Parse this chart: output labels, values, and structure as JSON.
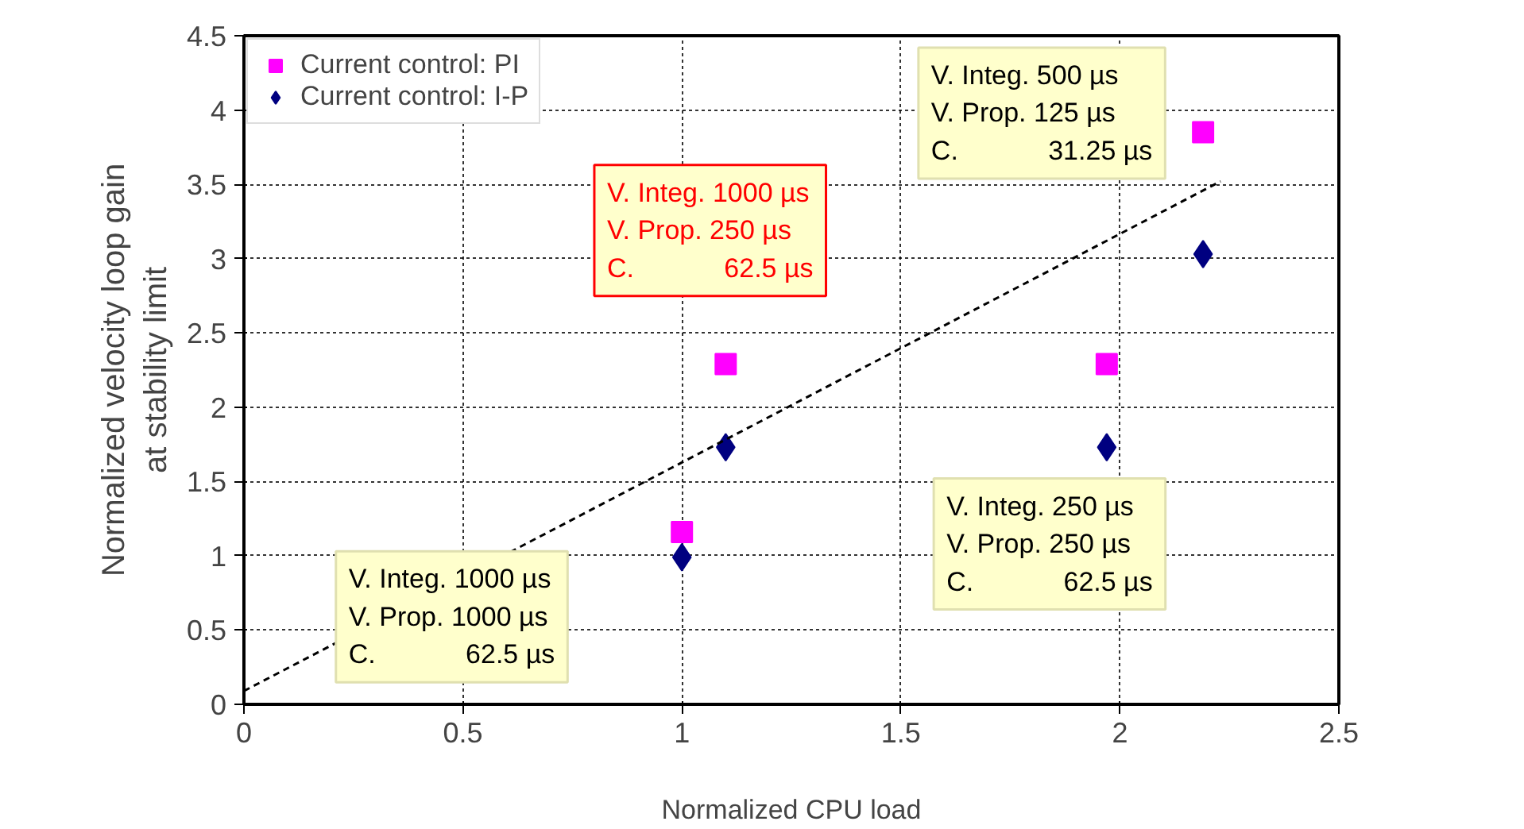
{
  "chart_data": {
    "type": "scatter",
    "xlabel": "Normalized CPU load",
    "ylabel": "Normalized velocity loop gain\nat stability limit",
    "xlim": [
      0,
      2.5
    ],
    "xticks": [
      0,
      0.5,
      1,
      1.5,
      2,
      2.5
    ],
    "ylim": [
      0,
      4.5
    ],
    "yticks": [
      0,
      0.5,
      1,
      1.5,
      2,
      2.5,
      3,
      3.5,
      4,
      4.5
    ],
    "grid": true,
    "legend": "top left",
    "series": [
      {
        "name": "Current control: PI",
        "color": "#ff00ff",
        "marker": "square",
        "x": [
          1.0,
          1.1,
          1.97,
          2.19
        ],
        "values": [
          1.16,
          2.29,
          2.29,
          3.85
        ]
      },
      {
        "name": "Current control: I-P",
        "color": "#000080",
        "marker": "diamond",
        "x": [
          1.0,
          1.1,
          1.97,
          2.19
        ],
        "values": [
          0.99,
          1.73,
          1.73,
          3.03
        ]
      },
      {
        "type": "line",
        "color": "#000000",
        "line_style": "dashed",
        "x": [
          0,
          2.23
        ],
        "values": [
          0.09,
          3.52
        ]
      }
    ],
    "annotations": [
      "V. Integ. 1000 µs\nV. Prop. 1000 µs\nC.            62.5 µs",
      "V. Integ. 1000 µs\nV. Prop. 250 µs\nC.            62.5 µs",
      "V. Integ. 250 µs\nV. Prop. 250 µs\nC.            62.5 µs",
      "V. Integ. 500 µs\nV. Prop. 125 µs\nC.            31.25 µs"
    ]
  }
}
